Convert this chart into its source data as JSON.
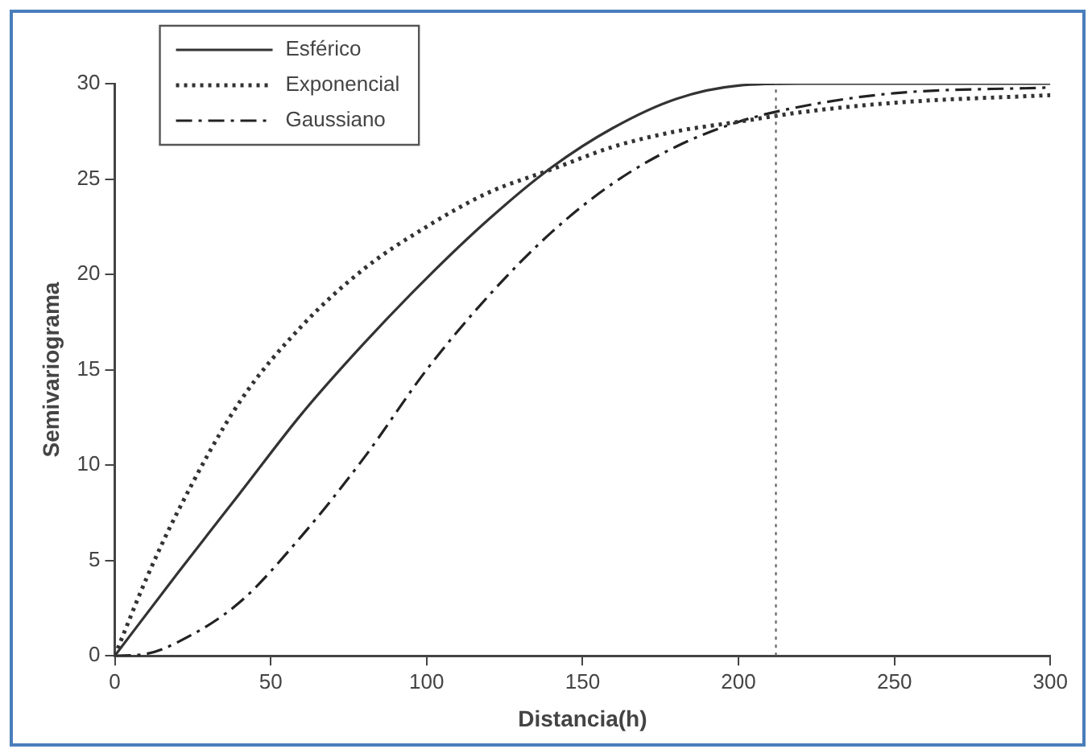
{
  "chart_data": {
    "type": "line",
    "xlabel": "Distancia(h)",
    "ylabel": "Semivariograma",
    "xlim": [
      0,
      300
    ],
    "xticks": [
      0,
      50,
      100,
      150,
      200,
      250,
      300
    ],
    "ylim": [
      0,
      30
    ],
    "yticks": [
      0,
      5,
      10,
      15,
      20,
      25,
      30
    ],
    "grid": false,
    "legend": "top left",
    "marker": "none",
    "series": [
      {
        "name": "Esférico",
        "color": "#333333",
        "line_style": "solid",
        "x": [
          0,
          20,
          40,
          60,
          80,
          100,
          120,
          140,
          160,
          180,
          200,
          220,
          250,
          300
        ],
        "values": [
          0,
          4.3,
          8.5,
          12.7,
          16.4,
          19.8,
          22.9,
          25.6,
          27.7,
          29.2,
          29.9,
          30,
          30,
          30
        ]
      },
      {
        "name": "Exponencial",
        "color": "#333333",
        "line_style": "dotted",
        "x": [
          0,
          10,
          20,
          40,
          60,
          80,
          100,
          120,
          140,
          160,
          180,
          200,
          220,
          250,
          300
        ],
        "values": [
          0,
          4,
          7.5,
          13.3,
          17.3,
          20.3,
          22.5,
          24.3,
          25.5,
          26.7,
          27.5,
          28,
          28.5,
          29,
          29.4
        ]
      },
      {
        "name": "Gaussiano",
        "color": "#222222",
        "line_style": "dashdot",
        "x": [
          0,
          10,
          20,
          40,
          60,
          80,
          100,
          120,
          140,
          160,
          180,
          200,
          220,
          250,
          300
        ],
        "values": [
          0,
          0.1,
          0.7,
          2.8,
          6.3,
          10.4,
          15,
          18.9,
          22.2,
          24.8,
          26.7,
          28,
          28.8,
          29.5,
          29.8
        ]
      }
    ],
    "ref_lines": [
      {
        "axis": "x",
        "value": 212,
        "color": "#555555",
        "line_style": "dotted"
      }
    ]
  }
}
